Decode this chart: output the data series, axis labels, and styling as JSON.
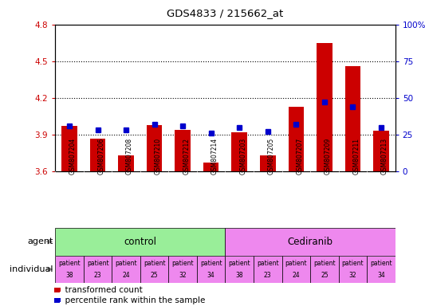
{
  "title": "GDS4833 / 215662_at",
  "samples": [
    "GSM807204",
    "GSM807206",
    "GSM807208",
    "GSM807210",
    "GSM807212",
    "GSM807214",
    "GSM807203",
    "GSM807205",
    "GSM807207",
    "GSM807209",
    "GSM807211",
    "GSM807213"
  ],
  "red_values": [
    3.97,
    3.87,
    3.73,
    3.98,
    3.94,
    3.67,
    3.92,
    3.73,
    4.13,
    4.65,
    4.46,
    3.93
  ],
  "blue_values": [
    31,
    28,
    28,
    32,
    31,
    26,
    30,
    27,
    32,
    47,
    44,
    30
  ],
  "ylim_left": [
    3.6,
    4.8
  ],
  "ylim_right": [
    0,
    100
  ],
  "yticks_left": [
    3.6,
    3.9,
    4.2,
    4.5,
    4.8
  ],
  "yticks_right": [
    0,
    25,
    50,
    75,
    100
  ],
  "ytick_labels_right": [
    "0",
    "25",
    "50",
    "75",
    "100%"
  ],
  "bar_color": "#cc0000",
  "dot_color": "#0000cc",
  "agent_groups": [
    {
      "label": "control",
      "start": 0,
      "end": 6,
      "color": "#99ee99"
    },
    {
      "label": "Cediranib",
      "start": 6,
      "end": 12,
      "color": "#ee88ee"
    }
  ],
  "individuals": [
    [
      "patient",
      "38"
    ],
    [
      "patient",
      "23"
    ],
    [
      "patient",
      "24"
    ],
    [
      "patient",
      "25"
    ],
    [
      "patient",
      "32"
    ],
    [
      "patient",
      "34"
    ],
    [
      "patient",
      "38"
    ],
    [
      "patient",
      "23"
    ],
    [
      "patient",
      "24"
    ],
    [
      "patient",
      "25"
    ],
    [
      "patient",
      "32"
    ],
    [
      "patient",
      "34"
    ]
  ],
  "individual_bg": "#ee88ee",
  "legend_red": "transformed count",
  "legend_blue": "percentile rank within the sample",
  "axis_color_left": "#cc0000",
  "axis_color_right": "#0000cc",
  "background_color": "#ffffff",
  "xlabel_bg": "#cccccc",
  "arrow_color": "#888888"
}
